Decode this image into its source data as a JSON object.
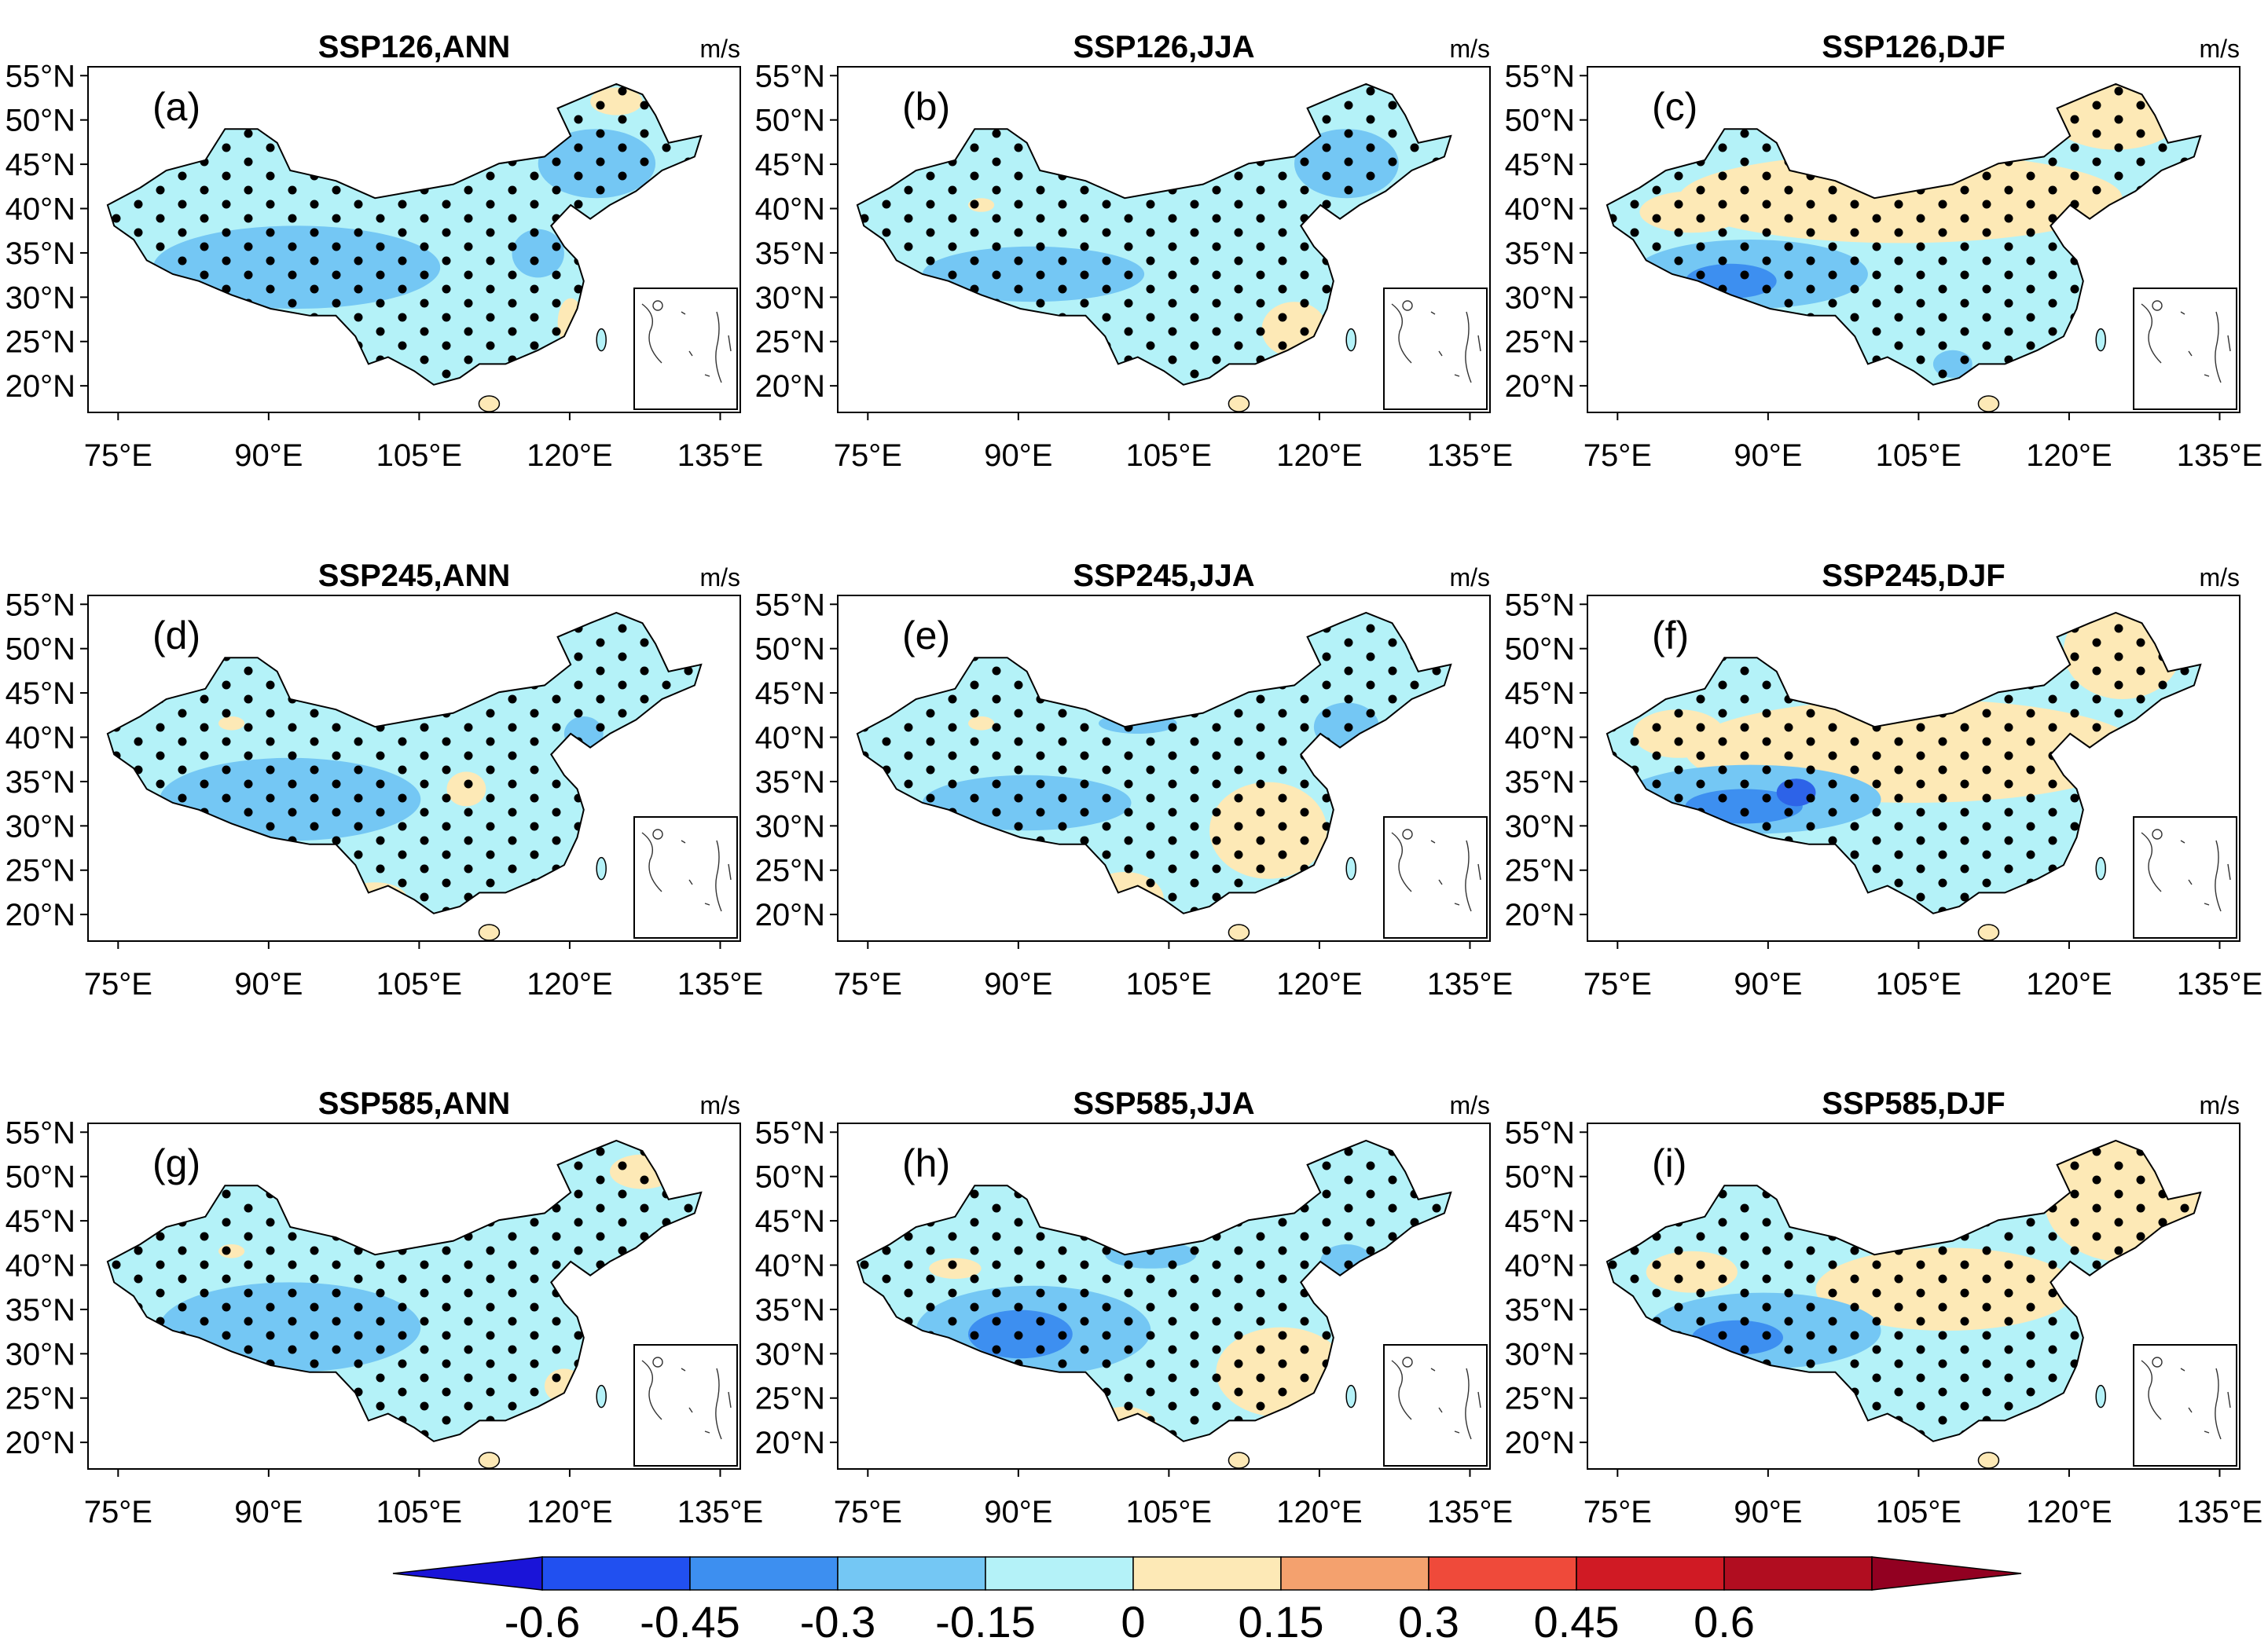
{
  "panels": [
    {
      "label": "(a)",
      "title": "SSP126,ANN",
      "unit": "m/s",
      "pattern": {
        "neg": [
          [
            0.32,
            0.58,
            0.22,
            0.12,
            "#74c7f4"
          ],
          [
            0.78,
            0.28,
            0.09,
            0.1,
            "#74c7f4"
          ],
          [
            0.69,
            0.54,
            0.04,
            0.07,
            "#74c7f4"
          ]
        ],
        "pos": [
          [
            0.81,
            0.1,
            0.04,
            0.04,
            "#fde9b6"
          ],
          [
            0.74,
            0.74,
            0.02,
            0.07,
            "#fde9b6"
          ],
          [
            0.63,
            0.97,
            0.03,
            0.03,
            "#fde9b6"
          ]
        ]
      }
    },
    {
      "label": "(b)",
      "title": "SSP126,JJA",
      "unit": "m/s",
      "pattern": {
        "neg": [
          [
            0.3,
            0.6,
            0.17,
            0.08,
            "#74c7f4"
          ],
          [
            0.78,
            0.28,
            0.08,
            0.1,
            "#74c7f4"
          ]
        ],
        "pos": [
          [
            0.7,
            0.76,
            0.05,
            0.08,
            "#fde9b6"
          ],
          [
            0.62,
            0.96,
            0.03,
            0.03,
            "#f4a16e"
          ],
          [
            0.22,
            0.4,
            0.02,
            0.02,
            "#fde9b6"
          ]
        ]
      }
    },
    {
      "label": "(c)",
      "title": "SSP126,DJF",
      "unit": "m/s",
      "pattern": {
        "neg": [
          [
            0.25,
            0.6,
            0.18,
            0.1,
            "#74c7f4"
          ],
          [
            0.22,
            0.62,
            0.07,
            0.05,
            "#3d8ff0"
          ],
          [
            0.56,
            0.86,
            0.03,
            0.04,
            "#74c7f4"
          ]
        ],
        "pos": [
          [
            0.48,
            0.38,
            0.34,
            0.13,
            "#fde9b6"
          ],
          [
            0.81,
            0.14,
            0.1,
            0.1,
            "#fde9b6"
          ],
          [
            0.16,
            0.42,
            0.08,
            0.06,
            "#fde9b6"
          ],
          [
            0.59,
            0.98,
            0.02,
            0.02,
            "#fde9b6"
          ]
        ]
      }
    },
    {
      "label": "(d)",
      "title": "SSP245,ANN",
      "unit": "m/s",
      "pattern": {
        "neg": [
          [
            0.31,
            0.59,
            0.2,
            0.12,
            "#74c7f4"
          ],
          [
            0.76,
            0.4,
            0.03,
            0.05,
            "#74c7f4"
          ]
        ],
        "pos": [
          [
            0.58,
            0.56,
            0.03,
            0.05,
            "#fde9b6"
          ],
          [
            0.44,
            0.88,
            0.05,
            0.05,
            "#fde9b6"
          ],
          [
            0.63,
            0.97,
            0.03,
            0.03,
            "#fde9b6"
          ],
          [
            0.22,
            0.37,
            0.02,
            0.02,
            "#fde9b6"
          ]
        ]
      }
    },
    {
      "label": "(e)",
      "title": "SSP245,JJA",
      "unit": "m/s",
      "pattern": {
        "neg": [
          [
            0.29,
            0.6,
            0.16,
            0.08,
            "#74c7f4"
          ],
          [
            0.78,
            0.38,
            0.05,
            0.07,
            "#74c7f4"
          ],
          [
            0.46,
            0.37,
            0.06,
            0.03,
            "#74c7f4"
          ]
        ],
        "pos": [
          [
            0.66,
            0.68,
            0.09,
            0.14,
            "#fde9b6"
          ],
          [
            0.44,
            0.88,
            0.06,
            0.08,
            "#fde9b6"
          ],
          [
            0.62,
            0.96,
            0.03,
            0.03,
            "#e85b3a"
          ],
          [
            0.22,
            0.37,
            0.02,
            0.02,
            "#fde9b6"
          ]
        ]
      }
    },
    {
      "label": "(f)",
      "title": "SSP245,DJF",
      "unit": "m/s",
      "pattern": {
        "neg": [
          [
            0.25,
            0.59,
            0.2,
            0.1,
            "#74c7f4"
          ],
          [
            0.24,
            0.61,
            0.09,
            0.05,
            "#3d8ff0"
          ],
          [
            0.32,
            0.57,
            0.03,
            0.04,
            "#2d63e8"
          ]
        ],
        "pos": [
          [
            0.5,
            0.45,
            0.35,
            0.15,
            "#fde9b6"
          ],
          [
            0.82,
            0.16,
            0.09,
            0.14,
            "#fde9b6"
          ],
          [
            0.14,
            0.4,
            0.07,
            0.07,
            "#fde9b6"
          ],
          [
            0.6,
            0.98,
            0.02,
            0.02,
            "#fde9b6"
          ]
        ]
      }
    },
    {
      "label": "(g)",
      "title": "SSP585,ANN",
      "unit": "m/s",
      "pattern": {
        "neg": [
          [
            0.31,
            0.59,
            0.2,
            0.13,
            "#74c7f4"
          ]
        ],
        "pos": [
          [
            0.85,
            0.14,
            0.05,
            0.05,
            "#fde9b6"
          ],
          [
            0.73,
            0.76,
            0.03,
            0.05,
            "#fde9b6"
          ],
          [
            0.63,
            0.97,
            0.03,
            0.03,
            "#fde9b6"
          ],
          [
            0.22,
            0.37,
            0.02,
            0.02,
            "#fde9b6"
          ]
        ]
      }
    },
    {
      "label": "(h)",
      "title": "SSP585,JJA",
      "unit": "m/s",
      "pattern": {
        "neg": [
          [
            0.3,
            0.6,
            0.18,
            0.13,
            "#74c7f4"
          ],
          [
            0.28,
            0.61,
            0.08,
            0.07,
            "#3d8ff0"
          ],
          [
            0.48,
            0.38,
            0.07,
            0.04,
            "#74c7f4"
          ],
          [
            0.78,
            0.4,
            0.04,
            0.05,
            "#74c7f4"
          ]
        ],
        "pos": [
          [
            0.68,
            0.72,
            0.1,
            0.13,
            "#fde9b6"
          ],
          [
            0.44,
            0.88,
            0.05,
            0.06,
            "#fde9b6"
          ],
          [
            0.62,
            0.96,
            0.03,
            0.03,
            "#f4a16e"
          ],
          [
            0.18,
            0.42,
            0.04,
            0.03,
            "#fde9b6"
          ]
        ]
      }
    },
    {
      "label": "(i)",
      "title": "SSP585,DJF",
      "unit": "m/s",
      "pattern": {
        "neg": [
          [
            0.27,
            0.6,
            0.18,
            0.11,
            "#74c7f4"
          ],
          [
            0.23,
            0.62,
            0.07,
            0.05,
            "#3d8ff0"
          ]
        ],
        "pos": [
          [
            0.55,
            0.48,
            0.2,
            0.12,
            "#fde9b6"
          ],
          [
            0.82,
            0.22,
            0.12,
            0.18,
            "#fde9b6"
          ],
          [
            0.16,
            0.43,
            0.07,
            0.06,
            "#fde9b6"
          ],
          [
            0.6,
            0.98,
            0.02,
            0.02,
            "#fde9b6"
          ]
        ]
      }
    }
  ],
  "axes": {
    "lat_ticks": [
      "55°N",
      "50°N",
      "45°N",
      "40°N",
      "35°N",
      "30°N",
      "25°N",
      "20°N"
    ],
    "lon_ticks": [
      "75°E",
      "90°E",
      "105°E",
      "120°E",
      "135°E"
    ],
    "lat_values": [
      55,
      50,
      45,
      40,
      35,
      30,
      25,
      20
    ],
    "lon_values": [
      75,
      90,
      105,
      120,
      135
    ],
    "lon_range": [
      72,
      137
    ],
    "lat_range": [
      17,
      56
    ]
  },
  "colorbar": {
    "labels": [
      "-0.6",
      "-0.45",
      "-0.3",
      "-0.15",
      "0",
      "0.15",
      "0.3",
      "0.45",
      "0.6"
    ],
    "colors": [
      "#1a14d8",
      "#2150f0",
      "#3d8ff0",
      "#74c7f4",
      "#b4f2f8",
      "#fde9b6",
      "#f4a16e",
      "#ef4a3a",
      "#d01a24",
      "#b10d20",
      "#920021"
    ]
  },
  "colors": {
    "background": "#ffffff",
    "land": "#b4f2f8",
    "stipple": "#000000",
    "border": "#000000"
  }
}
